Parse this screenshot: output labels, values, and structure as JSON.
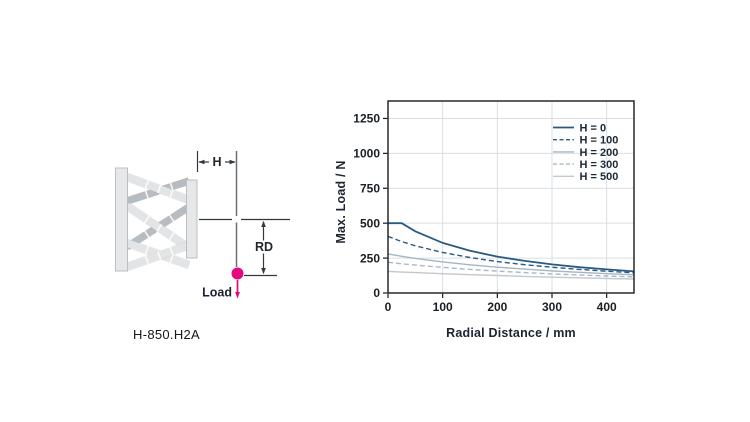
{
  "figure": {
    "model_label": "H-850.H2A",
    "diagram": {
      "h_label": "H",
      "rd_label": "RD",
      "load_label": "Load",
      "accent_color": "#e5077f"
    }
  },
  "chart_data": {
    "type": "line",
    "title": "",
    "xlabel": "Radial Distance / mm",
    "ylabel": "Max. Load / N",
    "xlim": [
      0,
      450
    ],
    "ylim": [
      0,
      1375
    ],
    "x_ticks": [
      0,
      100,
      200,
      300,
      400
    ],
    "y_ticks": [
      0,
      250,
      500,
      750,
      1000,
      1250
    ],
    "grid": true,
    "legend_position": "top-right",
    "frame_color": "#1a1a1a",
    "grid_color": "#dadfe4",
    "x": [
      0,
      25,
      50,
      100,
      150,
      200,
      250,
      300,
      350,
      400,
      450
    ],
    "series": [
      {
        "name": "H = 0",
        "style": "solid",
        "color": "#2a5a84",
        "width": 1.8,
        "values": [
          500,
          500,
          442,
          359,
          302,
          261,
          230,
          205,
          185,
          169,
          155
        ]
      },
      {
        "name": "H = 100",
        "style": "dashed",
        "color": "#2a5a84",
        "width": 1.4,
        "values": [
          405,
          368,
          338,
          290,
          254,
          225,
          203,
          185,
          169,
          156,
          145
        ]
      },
      {
        "name": "H = 200",
        "style": "solid",
        "color": "#a6b5c3",
        "width": 1.4,
        "values": [
          280,
          263,
          248,
          223,
          202,
          185,
          171,
          158,
          148,
          138,
          130
        ]
      },
      {
        "name": "H = 300",
        "style": "dashed",
        "color": "#a9b8c4",
        "width": 1.4,
        "values": [
          220,
          209,
          200,
          183,
          169,
          157,
          146,
          137,
          129,
          122,
          115
        ]
      },
      {
        "name": "H = 500",
        "style": "solid",
        "color": "#c2c9ce",
        "width": 1.4,
        "values": [
          155,
          150,
          146,
          138,
          131,
          125,
          119,
          113,
          109,
          104,
          100
        ]
      }
    ]
  }
}
